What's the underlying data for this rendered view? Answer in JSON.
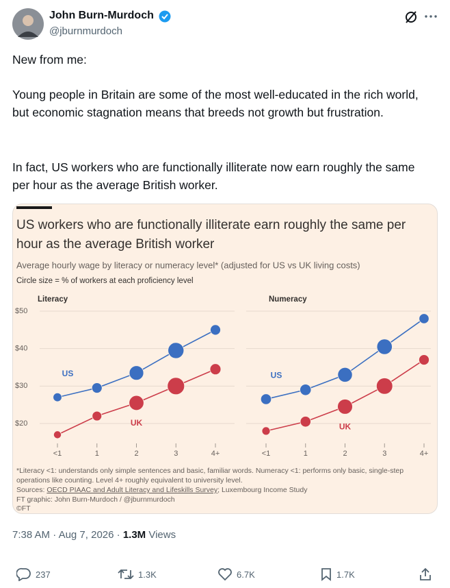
{
  "author": {
    "name": "John Burn-Murdoch",
    "handle": "@jburnmurdoch"
  },
  "tweet": {
    "paragraphs": [
      "New from me:",
      "Young people in Britain are some of the most well-educated in the rich world, but economic stagnation means that breeds not growth but frustration.",
      "In fact, US workers who are functionally illiterate now earn roughly the same per hour as the average British worker."
    ]
  },
  "chart_header": {
    "title_lines": [
      "US workers who are functionally illiterate earn roughly the same per",
      "hour as the average British worker"
    ],
    "subtitle": "Average hourly wage by literacy or numeracy level* (adjusted for US vs UK living costs)",
    "note": "Circle size = % of workers at each proficiency level"
  },
  "chart_data": [
    {
      "type": "bubble",
      "title": "Literacy",
      "categories": [
        "<1",
        "1",
        "2",
        "3",
        "4+"
      ],
      "series": [
        {
          "name": "US",
          "color": "#3b6fc1",
          "values": [
            27,
            29.5,
            33.5,
            39.5,
            45
          ],
          "sizes": [
            5,
            9,
            25,
            33,
            9
          ]
        },
        {
          "name": "UK",
          "color": "#cc3d4a",
          "values": [
            17,
            22,
            25.5,
            30,
            34.5
          ],
          "sizes": [
            3,
            7,
            27,
            40,
            11
          ]
        }
      ],
      "ylim": [
        15,
        52
      ],
      "yticks": [
        {
          "value": 20,
          "label": "$20"
        },
        {
          "value": 30,
          "label": "$30"
        },
        {
          "value": 40,
          "label": "$40"
        },
        {
          "value": 50,
          "label": "$50"
        }
      ],
      "grid": true
    },
    {
      "type": "bubble",
      "title": "Numeracy",
      "categories": [
        "<1",
        "1",
        "2",
        "3",
        "4+"
      ],
      "series": [
        {
          "name": "US",
          "color": "#3b6fc1",
          "values": [
            26.5,
            29,
            33,
            40.5,
            48
          ],
          "sizes": [
            10,
            12,
            26,
            30,
            8
          ]
        },
        {
          "name": "UK",
          "color": "#cc3d4a",
          "values": [
            18,
            20.5,
            24.5,
            30,
            37
          ],
          "sizes": [
            4,
            10,
            28,
            35,
            9
          ]
        }
      ],
      "ylim": [
        15,
        52
      ],
      "yticks": [
        20,
        30,
        40,
        50
      ],
      "grid": true
    }
  ],
  "footnotes": {
    "lines": [
      "*Literacy <1: understands only simple sentences and basic, familiar words. Numeracy <1: performs only basic, single-step",
      "operations like counting. Level 4+ roughly equivalent to university level."
    ],
    "sources_prefix": "Sources: ",
    "sources_link": "OECD PIAAC and Adult Literacy and Lifeskills Survey",
    "sources_suffix": "; Luxembourg Income Study",
    "graphic": "FT graphic: John Burn-Murdoch / @jburnmurdoch",
    "copyright": "©FT"
  },
  "meta": {
    "time": "7:38 AM",
    "date": "Aug 7, 2026",
    "views": "1.3M",
    "views_label": "Views"
  },
  "actions": {
    "replies": "237",
    "reposts": "1.3K",
    "likes": "6.7K",
    "bookmarks": "1.7K"
  }
}
